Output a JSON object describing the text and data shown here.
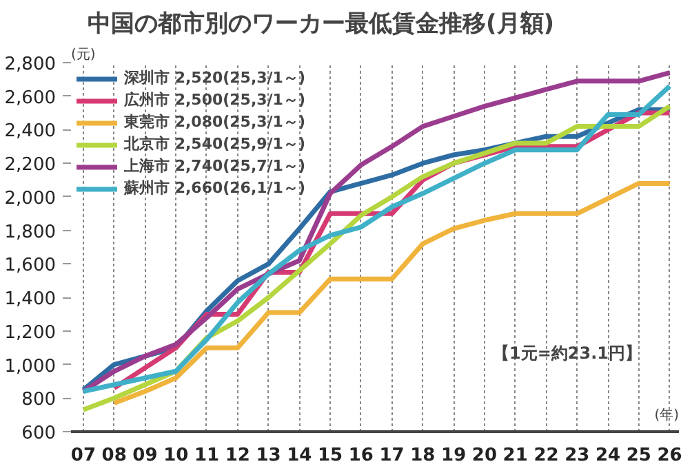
{
  "chart_data": {
    "type": "line",
    "title": "中国の都市別のワーカー最低賃金推移(月額)",
    "ylabel": "(元)",
    "xlabel": "(年)",
    "x": [
      7,
      8,
      9,
      10,
      11,
      12,
      13,
      14,
      15,
      16,
      17,
      18,
      19,
      20,
      21,
      22,
      23,
      24,
      25,
      26
    ],
    "xticks": [
      {
        "value": 7,
        "label": "07"
      },
      {
        "value": 8,
        "label": "08"
      },
      {
        "value": 9,
        "label": "09"
      },
      {
        "value": 10,
        "label": "10"
      },
      {
        "value": 11,
        "label": "11"
      },
      {
        "value": 12,
        "label": "12"
      },
      {
        "value": 13,
        "label": "13"
      },
      {
        "value": 14,
        "label": "14"
      },
      {
        "value": 15,
        "label": "15"
      },
      {
        "value": 16,
        "label": "16"
      },
      {
        "value": 17,
        "label": "17"
      },
      {
        "value": 18,
        "label": "18"
      },
      {
        "value": 19,
        "label": "19"
      },
      {
        "value": 20,
        "label": "20"
      },
      {
        "value": 21,
        "label": "21"
      },
      {
        "value": 22,
        "label": "22"
      },
      {
        "value": 23,
        "label": "23"
      },
      {
        "value": 24,
        "label": "24"
      },
      {
        "value": 25,
        "label": "25"
      },
      {
        "value": 26,
        "label": "26"
      }
    ],
    "xlim": [
      6.6,
      26.3
    ],
    "ylim": [
      600,
      2800
    ],
    "yticks": [
      {
        "value": 600,
        "label": "600"
      },
      {
        "value": 800,
        "label": "800"
      },
      {
        "value": 1000,
        "label": "1,000"
      },
      {
        "value": 1200,
        "label": "1,200"
      },
      {
        "value": 1400,
        "label": "1,400"
      },
      {
        "value": 1600,
        "label": "1,600"
      },
      {
        "value": 1800,
        "label": "1,800"
      },
      {
        "value": 2000,
        "label": "2,000"
      },
      {
        "value": 2200,
        "label": "2,200"
      },
      {
        "value": 2400,
        "label": "2,400"
      },
      {
        "value": 2600,
        "label": "2,600"
      },
      {
        "value": 2800,
        "label": "2,800"
      }
    ],
    "series": [
      {
        "name": "深圳市 2,520(25,3/1～)",
        "color": "#2e6da4",
        "values": [
          850,
          1000,
          1050,
          1100,
          1320,
          1500,
          1600,
          1810,
          2030,
          2080,
          2130,
          2200,
          2250,
          2280,
          2320,
          2360,
          2360,
          2440,
          2520,
          2520
        ]
      },
      {
        "name": "広州市 2,500(25,3/1～)",
        "color": "#d63a73",
        "values": [
          null,
          860,
          980,
          1100,
          1300,
          1300,
          1550,
          1550,
          1900,
          1900,
          1900,
          2100,
          2200,
          2250,
          2300,
          2300,
          2300,
          2400,
          2500,
          2500
        ]
      },
      {
        "name": "東莞市 2,080(25,3/1～)",
        "color": "#f0b43c",
        "values": [
          null,
          770,
          840,
          920,
          1100,
          1100,
          1310,
          1310,
          1510,
          1510,
          1510,
          1720,
          1810,
          1860,
          1900,
          1900,
          1900,
          1990,
          2080,
          2080
        ]
      },
      {
        "name": "北京市 2,540(25,9/1～)",
        "color": "#b5d63f",
        "values": [
          730,
          800,
          880,
          960,
          1160,
          1260,
          1400,
          1560,
          1720,
          1890,
          2000,
          2120,
          2200,
          2260,
          2320,
          2320,
          2420,
          2420,
          2420,
          2540
        ]
      },
      {
        "name": "上海市 2,740(25,7/1～)",
        "color": "#9b3d8f",
        "values": [
          840,
          960,
          1050,
          1120,
          1280,
          1450,
          1540,
          1620,
          2020,
          2190,
          2300,
          2420,
          2480,
          2540,
          2590,
          2640,
          2690,
          2690,
          2690,
          2740
        ]
      },
      {
        "name": "蘇州市 2,660(26,1/1～)",
        "color": "#3fb0c8",
        "values": [
          840,
          880,
          920,
          960,
          1150,
          1370,
          1540,
          1680,
          1770,
          1820,
          1940,
          2020,
          2110,
          2200,
          2280,
          2280,
          2280,
          2490,
          2490,
          2660
        ]
      }
    ],
    "annotations": [
      "【1元=約23.1円】"
    ],
    "grid": "x",
    "legend": "top left",
    "marker": "none",
    "line_style": "solid"
  }
}
